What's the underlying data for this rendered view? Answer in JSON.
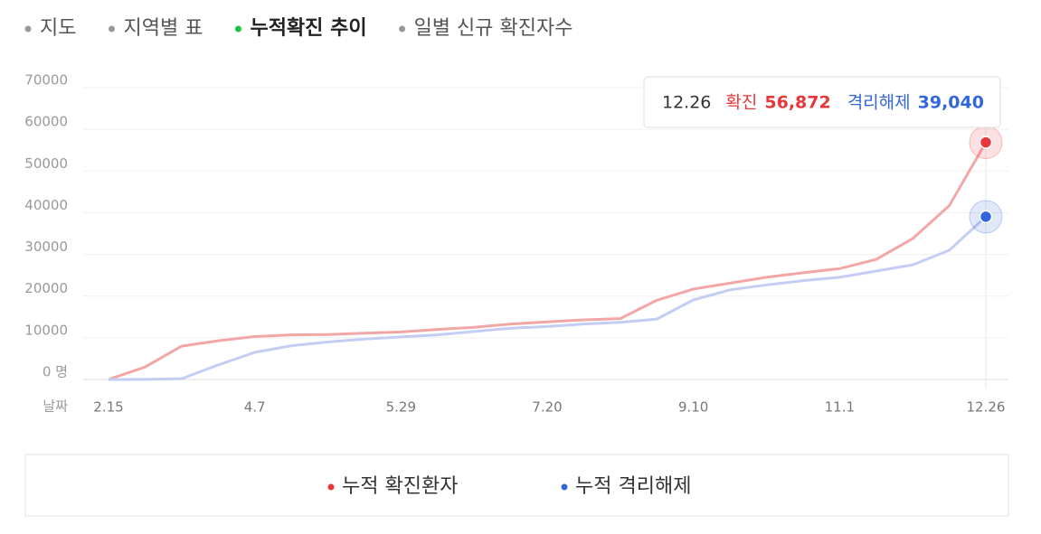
{
  "tabs": {
    "items": [
      "지도",
      "지역별 표",
      "누적확진 추이",
      "일별 신규 확진자수"
    ],
    "active": 2
  },
  "chart_data": {
    "type": "line",
    "x_label": "날짜",
    "categories": [
      "2.15",
      null,
      null,
      null,
      "4.7",
      null,
      null,
      null,
      "5.29",
      null,
      null,
      null,
      "7.20",
      null,
      null,
      null,
      "9.10",
      null,
      null,
      null,
      "11.1",
      null,
      null,
      null,
      "12.26"
    ],
    "series": [
      {
        "name": "누적 확진환자",
        "tooltip_name": "확진",
        "color": "#f3a6a6",
        "marker_color": "#e8373a",
        "values": [
          30,
          3000,
          8000,
          9300,
          10300,
          10700,
          10800,
          11100,
          11400,
          12000,
          12500,
          13300,
          13800,
          14300,
          14600,
          19000,
          21700,
          23100,
          24500,
          25600,
          26600,
          28800,
          33800,
          41700,
          56872
        ],
        "value_labels": [
          null,
          null,
          null,
          null,
          null,
          null,
          null,
          null,
          null,
          null,
          null,
          null,
          null,
          null,
          null,
          null,
          null,
          null,
          null,
          null,
          null,
          null,
          null,
          null,
          "56,872"
        ]
      },
      {
        "name": "누적 격리해제",
        "tooltip_name": "격리해제",
        "color": "#c4cdf3",
        "marker_color": "#3366dd",
        "values": [
          0,
          20,
          200,
          3500,
          6500,
          8100,
          9000,
          9700,
          10200,
          10700,
          11500,
          12300,
          12700,
          13300,
          13700,
          14500,
          19100,
          21500,
          22700,
          23700,
          24500,
          26000,
          27500,
          31000,
          39040
        ],
        "value_labels": [
          null,
          null,
          null,
          null,
          null,
          null,
          null,
          null,
          null,
          null,
          null,
          null,
          null,
          null,
          null,
          null,
          null,
          null,
          null,
          null,
          null,
          null,
          null,
          null,
          "39,040"
        ]
      }
    ],
    "ylim": [
      0,
      70000
    ],
    "yticks": [
      {
        "value": 0,
        "label": "0 명"
      },
      10000,
      20000,
      30000,
      40000,
      50000,
      60000,
      70000
    ],
    "grid": true
  }
}
